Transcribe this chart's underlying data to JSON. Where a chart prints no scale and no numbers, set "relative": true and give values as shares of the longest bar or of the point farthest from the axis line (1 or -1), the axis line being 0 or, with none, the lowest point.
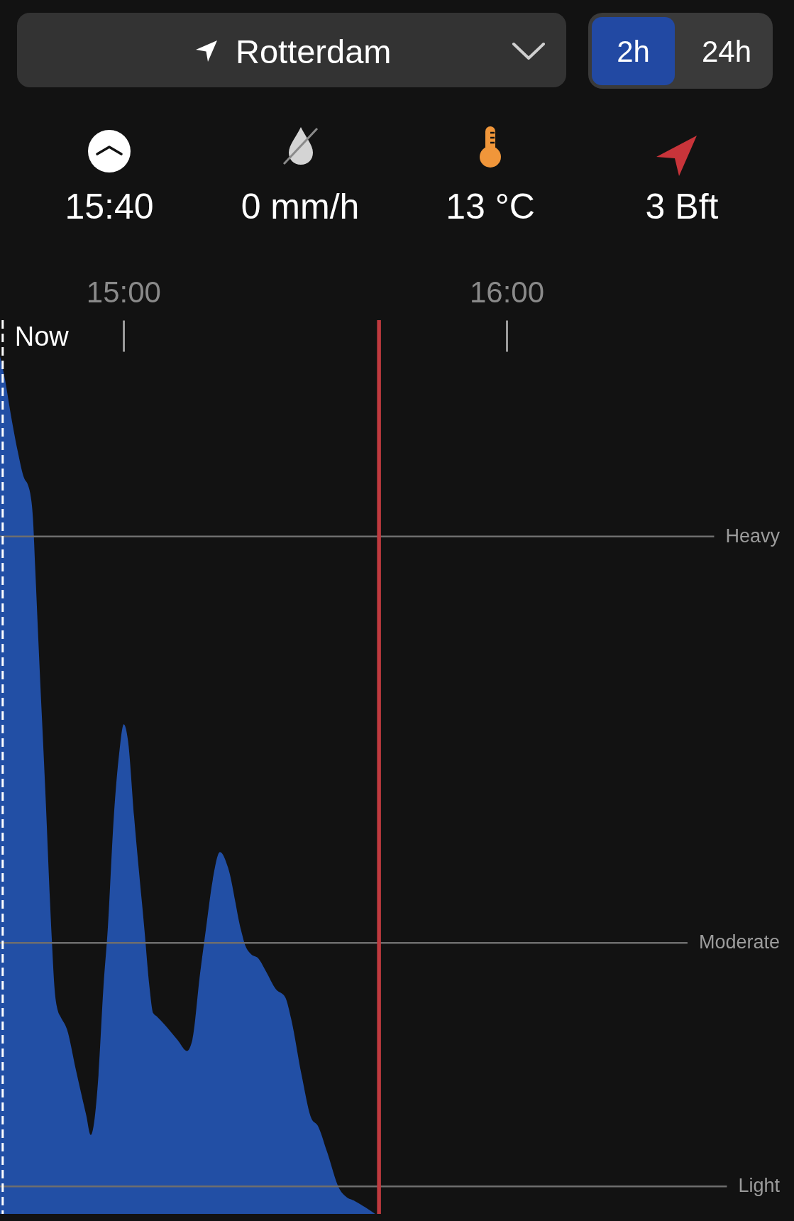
{
  "chart_data": [
    {
      "type": "other",
      "annotations": [
        "Rotterdam",
        "2h",
        "24h",
        "15:40",
        "0 mm/h",
        "13 °C",
        "3 Bft"
      ]
    },
    {
      "type": "area",
      "relative": true,
      "x": [
        14.678,
        14.691,
        14.704,
        14.724,
        14.741,
        14.751,
        14.757,
        14.764,
        14.77,
        14.778,
        14.796,
        14.813,
        14.82,
        14.829,
        14.836,
        14.853,
        14.876,
        14.903,
        14.915,
        14.922,
        14.935,
        14.948,
        14.959,
        14.975,
        14.989,
        15.001,
        15.012,
        15.028,
        15.055,
        15.068,
        15.078,
        15.088,
        15.107,
        15.141,
        15.166,
        15.18,
        15.2,
        15.215,
        15.233,
        15.252,
        15.273,
        15.307,
        15.319,
        15.333,
        15.352,
        15.372,
        15.398,
        15.422,
        15.438,
        15.465,
        15.491,
        15.507,
        15.531,
        15.564,
        15.581,
        15.604,
        15.63,
        15.657
      ],
      "series": [
        {
          "color": "#224fa5",
          "values": [
            1.0,
            0.973,
            0.938,
            0.89,
            0.858,
            0.85,
            0.84,
            0.811,
            0.752,
            0.67,
            0.496,
            0.322,
            0.265,
            0.237,
            0.23,
            0.215,
            0.168,
            0.115,
            0.092,
            0.102,
            0.162,
            0.265,
            0.331,
            0.463,
            0.537,
            0.571,
            0.552,
            0.463,
            0.331,
            0.265,
            0.234,
            0.23,
            0.221,
            0.203,
            0.19,
            0.203,
            0.28,
            0.331,
            0.389,
            0.422,
            0.404,
            0.331,
            0.312,
            0.303,
            0.298,
            0.283,
            0.262,
            0.253,
            0.227,
            0.162,
            0.111,
            0.103,
            0.073,
            0.029,
            0.02,
            0.015,
            0.008,
            0.0
          ]
        }
      ],
      "xlim": [
        14.678,
        16.75
      ],
      "xticks": [
        {
          "value": 15,
          "label": "15:00"
        },
        {
          "value": 16,
          "label": "16:00"
        }
      ],
      "ref_lines": [
        {
          "axis": "y",
          "value": 0.79,
          "label": "Heavy",
          "color": "#6e6e6e"
        },
        {
          "axis": "y",
          "value": 0.316,
          "label": "Moderate",
          "color": "#6e6e6e"
        },
        {
          "axis": "y",
          "value": 0.032,
          "label": "Light",
          "color": "#6e6e6e"
        },
        {
          "axis": "x",
          "value": 14.685,
          "label": "Now",
          "color": "#ffffff",
          "line_style": "dashed"
        },
        {
          "axis": "x",
          "value": 15.667,
          "color": "#bf3a3f"
        }
      ]
    }
  ]
}
